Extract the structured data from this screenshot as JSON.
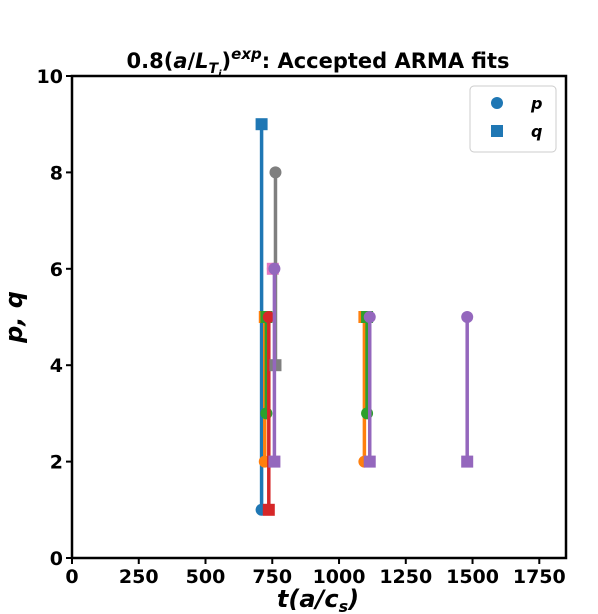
{
  "chart_data": {
    "type": "scatter",
    "title": {
      "prefix": "0.8(",
      "italic_a": "a",
      "slash": "/",
      "italic_L": "L",
      "sub_T": "T",
      "sub_i": "i",
      "close_paren": ")",
      "sup": "exp",
      "suffix": ": Accepted ARMA fits"
    },
    "xlabel": "t(a/c_s)",
    "xlabel_parts": {
      "main": "t(a/c",
      "sub": "s",
      "end": ")"
    },
    "ylabel": "p, q",
    "xlim": [
      0,
      1850
    ],
    "ylim": [
      0,
      10
    ],
    "xticks": [
      0,
      250,
      500,
      750,
      1000,
      1250,
      1500,
      1750
    ],
    "xtick_labels": [
      "0",
      "250",
      "500",
      "750",
      "1000",
      "1250",
      "1500",
      "1750"
    ],
    "yticks": [
      0,
      2,
      4,
      6,
      8,
      10
    ],
    "ytick_labels": [
      "0",
      "2",
      "4",
      "6",
      "8",
      "10"
    ],
    "grid": false,
    "legend": {
      "placement": "top-right",
      "entries": [
        {
          "label": "p",
          "marker": "circle",
          "color": "#1f77b4"
        },
        {
          "label": "q",
          "marker": "square",
          "color": "#1f77b4"
        }
      ]
    },
    "fits": [
      {
        "x": 710,
        "p": 1,
        "q": 9,
        "color": "#1f77b4"
      },
      {
        "x": 722,
        "p": 2,
        "q": 5,
        "color": "#ff7f0e"
      },
      {
        "x": 728,
        "p": 3,
        "q": 5,
        "color": "#2ca02c"
      },
      {
        "x": 737,
        "p": 5,
        "q": 1,
        "color": "#d62728"
      },
      {
        "x": 1095,
        "p": 2,
        "q": 5,
        "color": "#ff7f0e"
      },
      {
        "x": 1105,
        "p": 3,
        "q": 5,
        "color": "#2ca02c"
      },
      {
        "x": 752,
        "p": 6,
        "q": 6,
        "color": "#e377c2"
      },
      {
        "x": 762,
        "p": 8,
        "q": 4,
        "color": "#7f7f7f"
      },
      {
        "x": 758,
        "p": 6,
        "q": 2,
        "color": "#9467bd"
      },
      {
        "x": 1115,
        "p": 5,
        "q": 2,
        "color": "#9467bd"
      },
      {
        "x": 1480,
        "p": 5,
        "q": 2,
        "color": "#9467bd"
      }
    ]
  }
}
